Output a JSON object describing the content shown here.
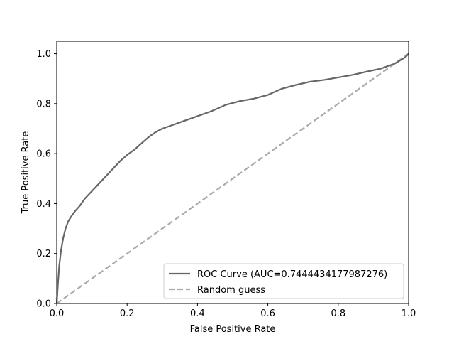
{
  "chart_data": {
    "type": "line",
    "title": "",
    "xlabel": "False Positive Rate",
    "ylabel": "True Positive Rate",
    "xlim": [
      0.0,
      1.0
    ],
    "ylim": [
      0.0,
      1.05
    ],
    "xticks": [
      "0.0",
      "0.2",
      "0.4",
      "0.6",
      "0.8",
      "1.0"
    ],
    "yticks": [
      "0.0",
      "0.2",
      "0.4",
      "0.6",
      "0.8",
      "1.0"
    ],
    "grid": false,
    "legend_position": "lower-right",
    "series": [
      {
        "name": "ROC Curve (AUC=0.7444434177987276)",
        "style": "solid",
        "color": "#666666",
        "x": [
          0.0,
          0.003,
          0.007,
          0.012,
          0.018,
          0.025,
          0.033,
          0.042,
          0.052,
          0.065,
          0.08,
          0.1,
          0.12,
          0.14,
          0.16,
          0.18,
          0.2,
          0.22,
          0.24,
          0.26,
          0.28,
          0.3,
          0.33,
          0.36,
          0.4,
          0.44,
          0.48,
          0.52,
          0.56,
          0.6,
          0.64,
          0.68,
          0.72,
          0.76,
          0.8,
          0.84,
          0.88,
          0.92,
          0.96,
          0.99,
          1.0
        ],
        "y": [
          0.0,
          0.07,
          0.15,
          0.21,
          0.26,
          0.3,
          0.33,
          0.35,
          0.37,
          0.39,
          0.42,
          0.45,
          0.48,
          0.51,
          0.54,
          0.57,
          0.595,
          0.615,
          0.64,
          0.665,
          0.685,
          0.7,
          0.715,
          0.73,
          0.75,
          0.77,
          0.795,
          0.81,
          0.82,
          0.835,
          0.86,
          0.875,
          0.888,
          0.895,
          0.905,
          0.915,
          0.928,
          0.94,
          0.96,
          0.985,
          1.0
        ]
      },
      {
        "name": "Random guess",
        "style": "dashed",
        "color": "#aaaaaa",
        "x": [
          0.0,
          1.0
        ],
        "y": [
          0.0,
          1.0
        ]
      }
    ]
  }
}
